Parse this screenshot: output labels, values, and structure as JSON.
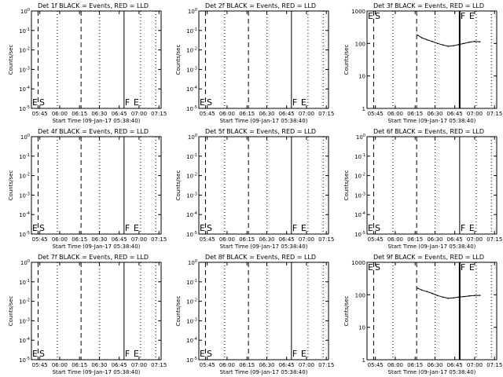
{
  "chart_data": [
    {
      "type": "line",
      "title": "Det 1f BLACK = Events, RED = LLD",
      "xlabel": "Start Time (09-Jan-17 05:38:40)",
      "ylabel": "Counts/sec",
      "scale": "log",
      "ytick_labels": [
        "10^-5",
        "10^-4",
        "10^-3",
        "10^-2",
        "10^-1",
        "10^0"
      ],
      "xtick_labels": [
        "05:45",
        "06:00",
        "06:15",
        "06:30",
        "06:45",
        "07:00",
        "07:15"
      ],
      "markers": {
        "E": "E",
        "S": "S",
        "F": "F",
        "E2": "E"
      },
      "series": []
    },
    {
      "type": "line",
      "title": "Det 2f BLACK = Events, RED = LLD",
      "xlabel": "Start Time (09-Jan-17 05:38:40)",
      "ylabel": "Counts/sec",
      "scale": "log",
      "ytick_labels": [
        "10^-5",
        "10^-4",
        "10^-3",
        "10^-2",
        "10^-1",
        "10^0"
      ],
      "xtick_labels": [
        "05:45",
        "06:00",
        "06:15",
        "06:30",
        "06:45",
        "07:00",
        "07:15"
      ],
      "markers": {
        "E": "E",
        "S": "S",
        "F": "F",
        "E2": "E"
      },
      "series": []
    },
    {
      "type": "line",
      "title": "Det 3f BLACK = Events, RED = LLD",
      "xlabel": "Start Time (09-Jan-17 05:38:40)",
      "ylabel": "Counts/sec",
      "scale": "log",
      "ytick_labels": [
        "1",
        "10",
        "100",
        "1000"
      ],
      "xtick_labels": [
        "05:45",
        "06:00",
        "06:15",
        "06:30",
        "06:45",
        "07:00",
        "07:15"
      ],
      "markers": {
        "E": "E",
        "S": "S",
        "F": "F",
        "E2": "E"
      },
      "series": [
        {
          "x": [
            "06:17",
            "06:20",
            "06:24",
            "06:28",
            "06:32",
            "06:36",
            "06:40",
            "06:44",
            "06:48",
            "06:52",
            "06:56",
            "07:00",
            "07:04"
          ],
          "y": [
            180,
            150,
            130,
            115,
            100,
            90,
            82,
            85,
            92,
            100,
            110,
            115,
            112
          ]
        }
      ]
    },
    {
      "type": "line",
      "title": "Det 4f BLACK = Events, RED = LLD",
      "xlabel": "Start Time (09-Jan-17 05:38:40)",
      "ylabel": "Counts/sec",
      "scale": "log",
      "ytick_labels": [
        "10^-5",
        "10^-4",
        "10^-3",
        "10^-2",
        "10^-1",
        "10^0"
      ],
      "xtick_labels": [
        "05:45",
        "06:00",
        "06:15",
        "06:30",
        "06:45",
        "07:00",
        "07:15"
      ],
      "markers": {
        "E": "E",
        "S": "S",
        "F": "F",
        "E2": "E"
      },
      "series": []
    },
    {
      "type": "line",
      "title": "Det 5f BLACK = Events, RED = LLD",
      "xlabel": "Start Time (09-Jan-17 05:38:40)",
      "ylabel": "Counts/sec",
      "scale": "log",
      "ytick_labels": [
        "10^-5",
        "10^-4",
        "10^-3",
        "10^-2",
        "10^-1",
        "10^0"
      ],
      "xtick_labels": [
        "05:45",
        "06:00",
        "06:15",
        "06:30",
        "06:45",
        "07:00",
        "07:15"
      ],
      "markers": {
        "E": "E",
        "S": "S",
        "F": "F",
        "E2": "E"
      },
      "series": []
    },
    {
      "type": "line",
      "title": "Det 6f BLACK = Events, RED = LLD",
      "xlabel": "Start Time (09-Jan-17 05:38:40)",
      "ylabel": "Counts/sec",
      "scale": "log",
      "ytick_labels": [
        "10^-5",
        "10^-4",
        "10^-3",
        "10^-2",
        "10^-1",
        "10^0"
      ],
      "xtick_labels": [
        "05:45",
        "06:00",
        "06:15",
        "06:30",
        "06:45",
        "07:00",
        "07:15"
      ],
      "markers": {
        "E": "E",
        "S": "S",
        "F": "F",
        "E2": "E"
      },
      "series": []
    },
    {
      "type": "line",
      "title": "Det 7f BLACK = Events, RED = LLD",
      "xlabel": "Start Time (09-Jan-17 05:38:40)",
      "ylabel": "Counts/sec",
      "scale": "log",
      "ytick_labels": [
        "10^-5",
        "10^-4",
        "10^-3",
        "10^-2",
        "10^-1",
        "10^0"
      ],
      "xtick_labels": [
        "05:45",
        "06:00",
        "06:15",
        "06:30",
        "06:45",
        "07:00",
        "07:15"
      ],
      "markers": {
        "E": "E",
        "S": "S",
        "F": "F",
        "E2": "E"
      },
      "series": []
    },
    {
      "type": "line",
      "title": "Det 8f BLACK = Events, RED = LLD",
      "xlabel": "Start Time (09-Jan-17 05:38:40)",
      "ylabel": "Counts/sec",
      "scale": "log",
      "ytick_labels": [
        "10^-5",
        "10^-4",
        "10^-3",
        "10^-2",
        "10^-1",
        "10^0"
      ],
      "xtick_labels": [
        "05:45",
        "06:00",
        "06:15",
        "06:30",
        "06:45",
        "07:00",
        "07:15"
      ],
      "markers": {
        "E": "E",
        "S": "S",
        "F": "F",
        "E2": "E"
      },
      "series": []
    },
    {
      "type": "line",
      "title": "Det 9f BLACK = Events, RED = LLD",
      "xlabel": "Start Time (09-Jan-17 05:38:40)",
      "ylabel": "Counts/sec",
      "scale": "log",
      "ytick_labels": [
        "1",
        "10",
        "100",
        "1000"
      ],
      "xtick_labels": [
        "05:45",
        "06:00",
        "06:15",
        "06:30",
        "06:45",
        "07:00",
        "07:15"
      ],
      "markers": {
        "E": "E",
        "S": "S",
        "F": "F",
        "E2": "E"
      },
      "series": [
        {
          "x": [
            "06:17",
            "06:20",
            "06:24",
            "06:28",
            "06:32",
            "06:36",
            "06:40",
            "06:44",
            "06:48",
            "06:52",
            "06:56",
            "07:00",
            "07:04"
          ],
          "y": [
            160,
            140,
            125,
            110,
            95,
            85,
            78,
            80,
            85,
            88,
            92,
            95,
            96
          ]
        }
      ]
    }
  ]
}
